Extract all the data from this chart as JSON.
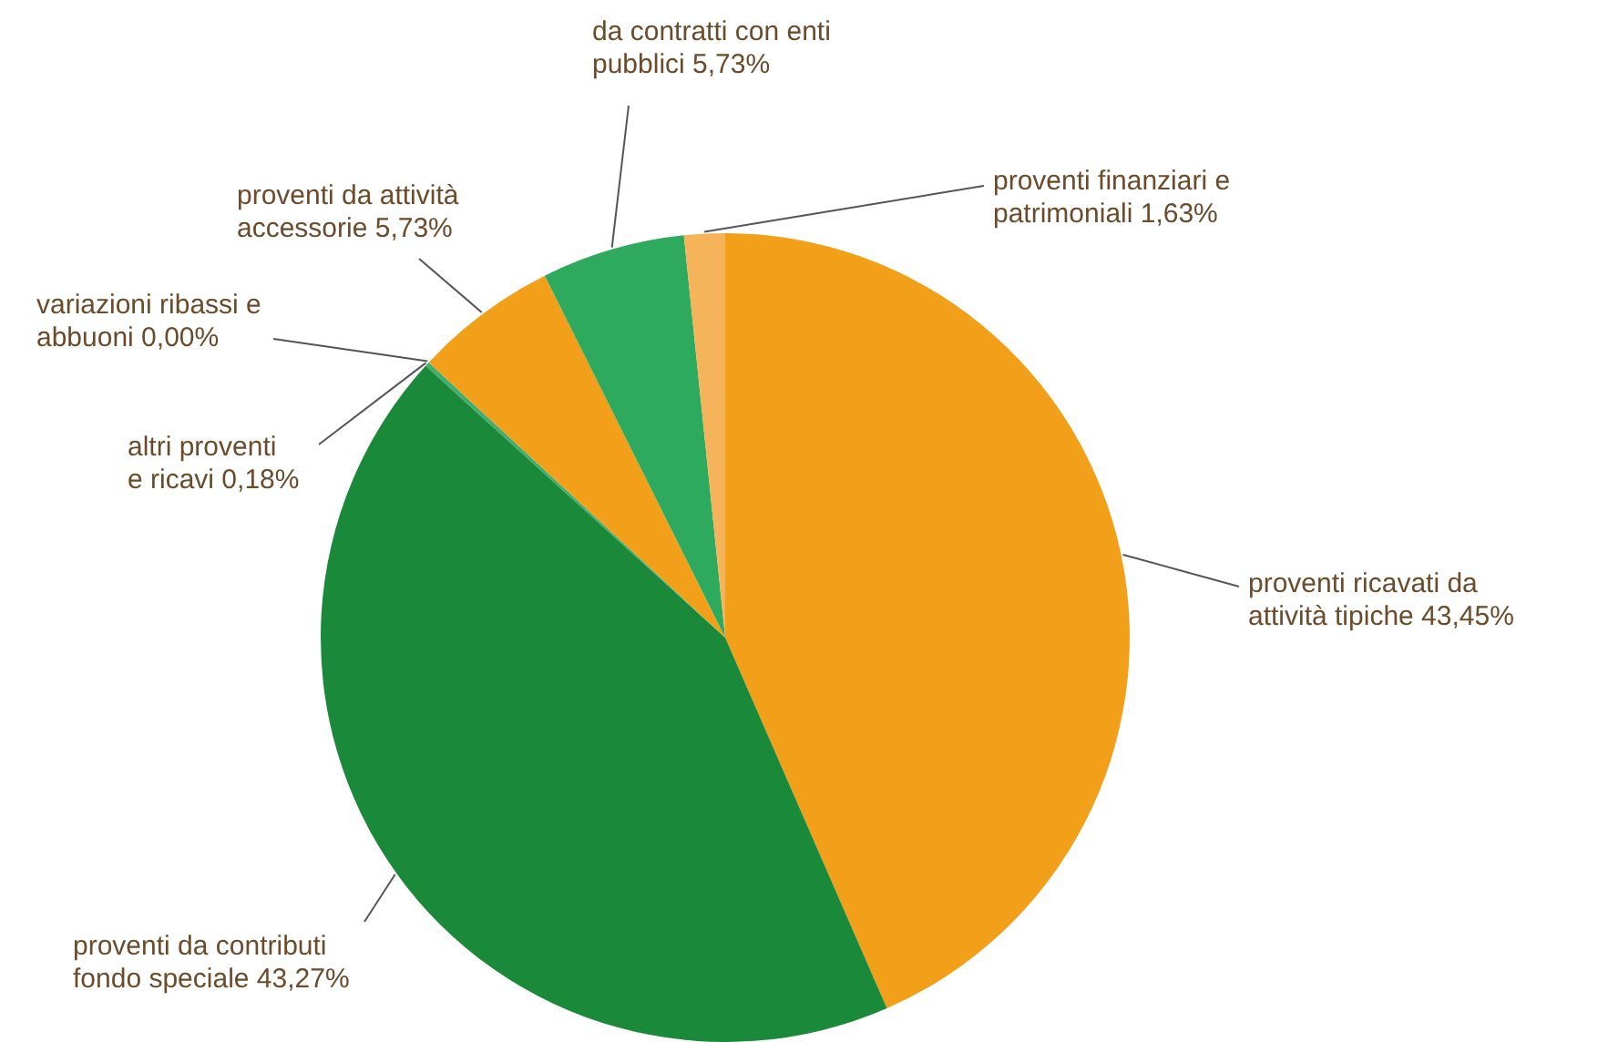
{
  "chart_data": {
    "type": "pie",
    "categories": [
      "proventi ricavati da attività tipiche",
      "proventi da contributi fondo speciale",
      "altri proventi e ricavi",
      "variazioni ribassi e abbuoni",
      "proventi da attività accessorie",
      "da contratti con enti pubblici",
      "proventi finanziari e patrimoniali"
    ],
    "values": [
      43.45,
      43.27,
      0.18,
      0,
      5.73,
      5.73,
      1.63
    ],
    "value_labels": [
      "43,45%",
      "43,27%",
      "0,18%",
      "0,00%",
      "5,73%",
      "5,73%",
      "1,63%"
    ],
    "colors": [
      "#f29f1a",
      "#1a8a3a",
      "#3fae6e",
      "#8fc9a0",
      "#f29f1a",
      "#2eaa5f",
      "#f6b45a"
    ]
  }
}
